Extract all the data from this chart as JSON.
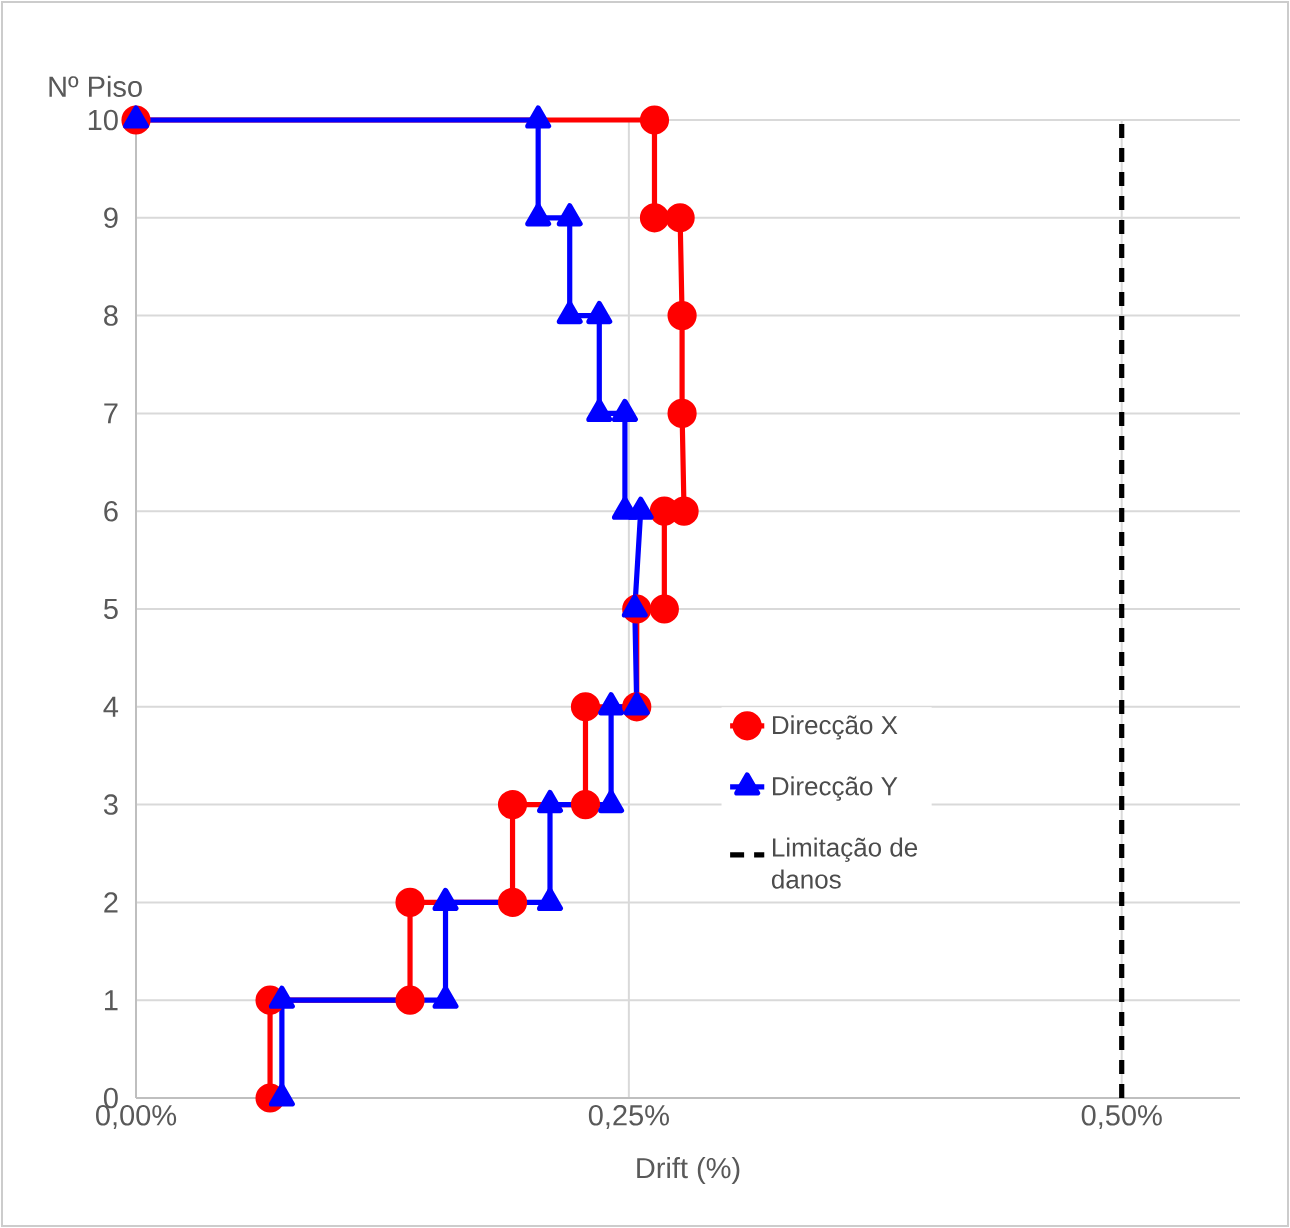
{
  "chart_data": {
    "type": "line",
    "xlabel": "Drift (%)",
    "ylabel": "Nº Piso",
    "xlim": [
      0,
      0.56
    ],
    "ylim": [
      0,
      10
    ],
    "xticks": [
      {
        "value": 0,
        "label": "0,00%"
      },
      {
        "value": 0.25,
        "label": "0,25%"
      },
      {
        "value": 0.5,
        "label": "0,50%"
      }
    ],
    "yticks": [
      0,
      1,
      2,
      3,
      4,
      5,
      6,
      7,
      8,
      9,
      10
    ],
    "grid": true,
    "legend": "right",
    "series": [
      {
        "name": "Direcção X",
        "color": "#ff0000",
        "marker": "circle",
        "line_style": "solid",
        "x": [
          0.068,
          0.068,
          0.139,
          0.139,
          0.191,
          0.191,
          0.228,
          0.228,
          0.254,
          0.254,
          0.268,
          0.268,
          0.278,
          0.277,
          0.277,
          0.276,
          0.263,
          0.263,
          0
        ],
        "values": [
          0,
          1,
          1,
          2,
          2,
          3,
          3,
          4,
          4,
          5,
          5,
          6,
          6,
          7,
          8,
          9,
          9,
          10,
          10
        ]
      },
      {
        "name": "Direcção Y",
        "color": "#0000ff",
        "marker": "triangle",
        "line_style": "solid",
        "x": [
          0.074,
          0.074,
          0.157,
          0.157,
          0.21,
          0.21,
          0.241,
          0.241,
          0.254,
          0.253,
          0.256,
          0.248,
          0.248,
          0.235,
          0.235,
          0.22,
          0.22,
          0.204,
          0.204,
          0
        ],
        "values": [
          0,
          1,
          1,
          2,
          2,
          3,
          3,
          4,
          4,
          5,
          6,
          6,
          7,
          7,
          8,
          8,
          9,
          9,
          10,
          10
        ]
      },
      {
        "name": "Limitação de danos",
        "color": "#000000",
        "marker": "none",
        "line_style": "dashed",
        "x": [
          0.5,
          0.5
        ],
        "values": [
          0,
          10
        ]
      }
    ]
  }
}
